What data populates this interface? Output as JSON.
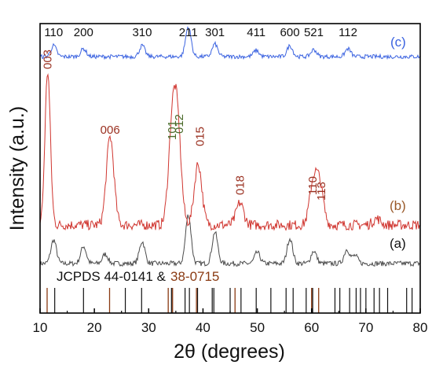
{
  "chart_data": {
    "type": "line",
    "xlabel": "2θ (degrees)",
    "ylabel": "Intensity (a.u.)",
    "xlim": [
      10,
      80
    ],
    "xticks": [
      10,
      20,
      30,
      40,
      50,
      60,
      70,
      80
    ],
    "colors": {
      "a": "#4a4a4a",
      "b": "#d0352f",
      "b_label": "#9a5a2a",
      "c": "#3a62e0",
      "ref1": "#111111",
      "ref2": "#8a3a12"
    },
    "series": [
      {
        "name": "(a)",
        "offset": 0,
        "peaks": [
          [
            12.5,
            30
          ],
          [
            18,
            22
          ],
          [
            22,
            12
          ],
          [
            28.8,
            28
          ],
          [
            37.3,
            62
          ],
          [
            42.2,
            40
          ],
          [
            50,
            14
          ],
          [
            56,
            32
          ],
          [
            60.4,
            16
          ],
          [
            66.5,
            18
          ],
          [
            68,
            10
          ]
        ]
      },
      {
        "name": "(b)",
        "offset": 0,
        "peaks": [
          [
            11.4,
            195
          ],
          [
            22.9,
            112
          ],
          [
            34.3,
            112
          ],
          [
            35.3,
            118
          ],
          [
            39.1,
            78
          ],
          [
            46.8,
            28
          ],
          [
            60.3,
            52
          ],
          [
            61.5,
            48
          ],
          [
            72,
            8
          ]
        ]
      },
      {
        "name": "(c)",
        "offset": 0,
        "peaks": [
          [
            12.5,
            14
          ],
          [
            18,
            10
          ],
          [
            28.8,
            14
          ],
          [
            37.3,
            38
          ],
          [
            42.2,
            16
          ],
          [
            49.8,
            8
          ],
          [
            56,
            14
          ],
          [
            60.4,
            9
          ],
          [
            66.7,
            10
          ]
        ]
      }
    ],
    "peak_labels_c": [
      {
        "text": "110",
        "x": 12.5
      },
      {
        "text": "200",
        "x": 18
      },
      {
        "text": "310",
        "x": 28.8
      },
      {
        "text": "211",
        "x": 37.3
      },
      {
        "text": "301",
        "x": 42.2
      },
      {
        "text": "411",
        "x": 49.8
      },
      {
        "text": "600",
        "x": 56
      },
      {
        "text": "521",
        "x": 60.4
      },
      {
        "text": "112",
        "x": 66.7
      }
    ],
    "peak_labels_b": [
      {
        "text": "003",
        "x": 11.4
      },
      {
        "text": "006",
        "x": 22.9
      },
      {
        "text": "101",
        "x": 34.3
      },
      {
        "text": "012",
        "x": 35.3
      },
      {
        "text": "015",
        "x": 39.1
      },
      {
        "text": "018",
        "x": 46.8
      },
      {
        "text": "110",
        "x": 60.3
      },
      {
        "text": "113",
        "x": 61.5
      }
    ],
    "reference_label_part1": "JCPDS 44-0141 &",
    "reference_label_part2": "38-0715",
    "reference_lines_44_0141": [
      12.7,
      18.0,
      25.7,
      28.7,
      34.2,
      36.7,
      37.5,
      39.0,
      41.7,
      42.0,
      45.0,
      47.0,
      49.8,
      52.5,
      55.3,
      56.6,
      59.0,
      60.2,
      64.3,
      65.2,
      67.0,
      68.2,
      69.0,
      70.0,
      71.5,
      72.5,
      74.0,
      77.5,
      78.5
    ],
    "reference_lines_38_0715": [
      11.3,
      22.8,
      33.6,
      34.4,
      38.8,
      45.9,
      60.0,
      61.3
    ]
  }
}
